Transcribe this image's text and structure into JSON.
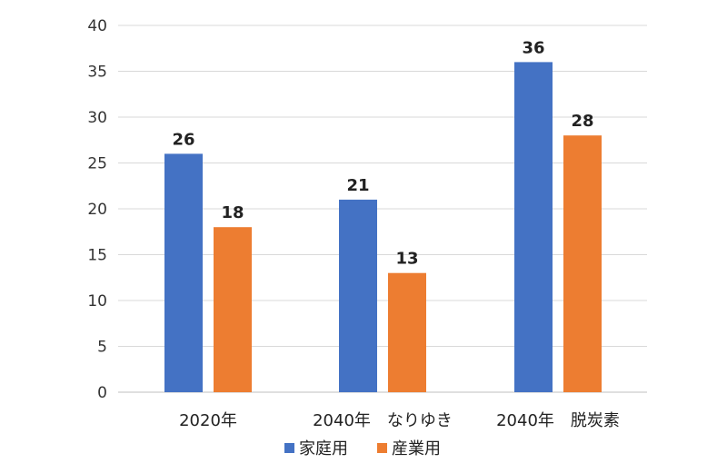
{
  "chart_data": {
    "type": "bar",
    "title": "",
    "xlabel": "",
    "ylabel": "",
    "categories": [
      "2020年",
      "2040年　なりゆき",
      "2040年　脱炭素"
    ],
    "series": [
      {
        "name": "家庭用",
        "color": "#4472C4",
        "values": [
          26,
          21,
          36
        ]
      },
      {
        "name": "産業用",
        "color": "#ED7D31",
        "values": [
          18,
          13,
          28
        ]
      }
    ],
    "ylim": [
      0,
      40
    ],
    "yticks": [
      0,
      5,
      10,
      15,
      20,
      25,
      30,
      35,
      40
    ],
    "grid": true,
    "legend_position": "bottom"
  }
}
